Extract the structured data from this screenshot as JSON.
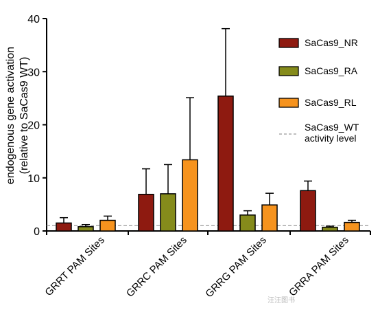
{
  "chart_data": {
    "type": "bar",
    "categories": [
      "GRRT PAM Sites",
      "GRRC PAM Sites",
      "GRRG PAM Sites",
      "GRRA PAM Sites"
    ],
    "series": [
      {
        "name": "SaCas9_NR",
        "color": "#8e1a10",
        "values": [
          1.5,
          6.9,
          25.4,
          7.6
        ],
        "errors": [
          1.0,
          4.8,
          12.7,
          1.8
        ]
      },
      {
        "name": "SaCas9_RA",
        "color": "#858b1b",
        "values": [
          0.8,
          7.0,
          3.0,
          0.7
        ],
        "errors": [
          0.4,
          5.5,
          0.8,
          0.2
        ]
      },
      {
        "name": "SaCas9_RL",
        "color": "#f6931e",
        "values": [
          2.0,
          13.4,
          4.9,
          1.6
        ],
        "errors": [
          0.8,
          11.7,
          2.2,
          0.4
        ]
      }
    ],
    "reference_line": {
      "value": 1.0,
      "label": "SaCas9_WT activity level",
      "label_lines": [
        "SaCas9_WT",
        "activity level"
      ],
      "style": "dashed",
      "color": "#999999"
    },
    "ylabel": "endogenous gene activation",
    "ylabel2": "(relative to SaCas9 WT)",
    "ylim": [
      0,
      40
    ],
    "yticks": [
      "0",
      "10",
      "20",
      "30",
      "40"
    ],
    "grid": false,
    "legend_position": "right"
  },
  "watermark": "汪汪图书"
}
